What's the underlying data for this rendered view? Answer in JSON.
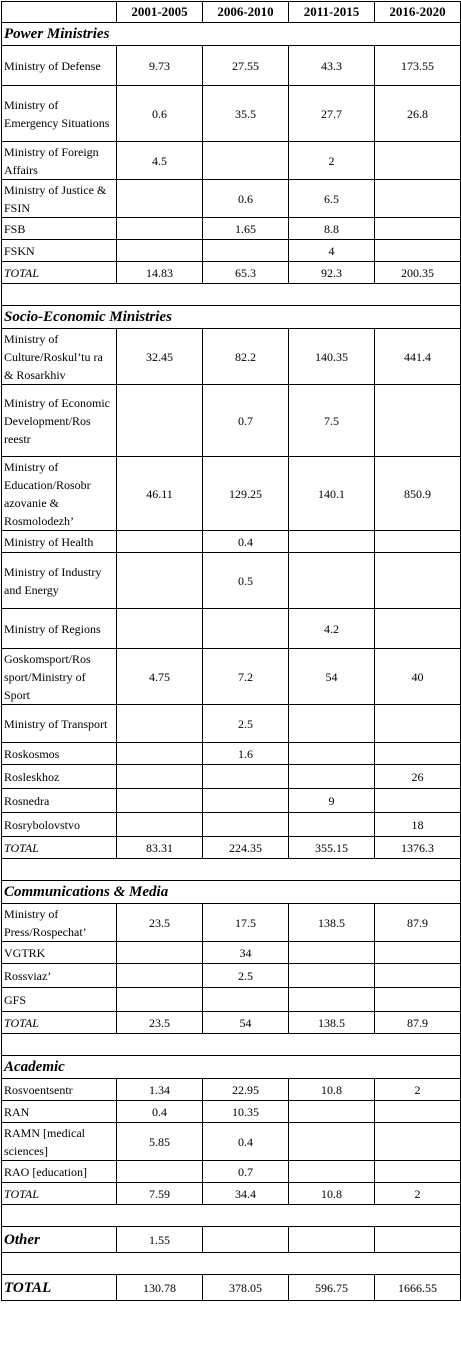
{
  "header": [
    "",
    "2001-2005",
    "2006-2010",
    "2011-2015",
    "2016-2020"
  ],
  "rows": [
    {
      "kind": "section",
      "title": "Power Ministries"
    },
    {
      "kind": "row",
      "h": 40,
      "label": "Ministry of Defense",
      "v": [
        "9.73",
        "27.55",
        "43.3",
        "173.55"
      ]
    },
    {
      "kind": "row",
      "h": 56,
      "label": "Ministry of Emergency Situations",
      "v": [
        "0.6",
        "35.5",
        "27.7",
        "26.8"
      ]
    },
    {
      "kind": "row",
      "h": 38,
      "label": "Ministry of Foreign Affairs",
      "v": [
        "4.5",
        "",
        "2",
        ""
      ]
    },
    {
      "kind": "row",
      "h": 38,
      "label": "Ministry of Justice & FSIN",
      "v": [
        "",
        "0.6",
        "6.5",
        ""
      ]
    },
    {
      "kind": "row",
      "h": 22,
      "label": "FSB",
      "v": [
        "",
        "1.65",
        "8.8",
        ""
      ]
    },
    {
      "kind": "row",
      "h": 22,
      "label": "FSKN",
      "v": [
        "",
        "",
        "4",
        ""
      ]
    },
    {
      "kind": "sum",
      "h": 22,
      "label": "TOTAL",
      "v": [
        "14.83",
        "65.3",
        "92.3",
        "200.35"
      ]
    },
    {
      "kind": "blank"
    },
    {
      "kind": "section",
      "title": "Socio-Economic Ministries"
    },
    {
      "kind": "row",
      "h": 56,
      "label": "Ministry of Culture/Roskul’tu ra & Rosarkhiv",
      "v": [
        "32.45",
        "82.2",
        "140.35",
        "441.4"
      ]
    },
    {
      "kind": "row",
      "h": 72,
      "label": "Ministry of Economic Development/Ros reestr",
      "v": [
        "",
        "0.7",
        "7.5",
        ""
      ]
    },
    {
      "kind": "row",
      "h": 74,
      "label": "Ministry of Education/Rosobr azovanie & Rosmolodezh’",
      "v": [
        "46.11",
        "129.25",
        "140.1",
        "850.9"
      ]
    },
    {
      "kind": "row",
      "h": 22,
      "label": "Ministry of Health",
      "v": [
        "",
        "0.4",
        "",
        ""
      ]
    },
    {
      "kind": "row",
      "h": 56,
      "label": "Ministry of Industry and Energy",
      "v": [
        "",
        "0.5",
        "",
        ""
      ]
    },
    {
      "kind": "row",
      "h": 40,
      "label": "Ministry of Regions",
      "v": [
        "",
        "",
        "4.2",
        ""
      ]
    },
    {
      "kind": "row",
      "h": 56,
      "label": "Goskomsport/Ros sport/Ministry of Sport",
      "v": [
        "4.75",
        "7.2",
        "54",
        "40"
      ]
    },
    {
      "kind": "row",
      "h": 38,
      "label": "Ministry of Transport",
      "v": [
        "",
        "2.5",
        "",
        ""
      ]
    },
    {
      "kind": "row",
      "h": 22,
      "label": "Roskosmos",
      "v": [
        "",
        "1.6",
        "",
        ""
      ]
    },
    {
      "kind": "row",
      "h": 24,
      "label": "Rosleskhoz",
      "v": [
        "",
        "",
        "",
        "26"
      ]
    },
    {
      "kind": "row",
      "h": 24,
      "label": "Rosnedra",
      "v": [
        "",
        "",
        "9",
        ""
      ]
    },
    {
      "kind": "row",
      "h": 24,
      "label": "Rosrybolovstvo",
      "v": [
        "",
        "",
        "",
        "18"
      ]
    },
    {
      "kind": "sum",
      "h": 22,
      "label": "TOTAL",
      "v": [
        "83.31",
        "224.35",
        "355.15",
        "1376.3"
      ]
    },
    {
      "kind": "blank"
    },
    {
      "kind": "section",
      "title": "Communications & Media"
    },
    {
      "kind": "row",
      "h": 38,
      "label": "Ministry of Press/Rospechat’",
      "v": [
        "23.5",
        "17.5",
        "138.5",
        "87.9"
      ]
    },
    {
      "kind": "row",
      "h": 22,
      "label": "VGTRK",
      "v": [
        "",
        "34",
        "",
        ""
      ]
    },
    {
      "kind": "row",
      "h": 24,
      "label": "Rossviaz’",
      "v": [
        "",
        "2.5",
        "",
        ""
      ]
    },
    {
      "kind": "row",
      "h": 24,
      "label": "GFS",
      "v": [
        "",
        "",
        "",
        ""
      ]
    },
    {
      "kind": "sum",
      "h": 22,
      "label": "TOTAL",
      "v": [
        "23.5",
        "54",
        "138.5",
        "87.9"
      ]
    },
    {
      "kind": "blank"
    },
    {
      "kind": "section",
      "title": "Academic"
    },
    {
      "kind": "row",
      "h": 22,
      "label": "Rosvoentsentr",
      "v": [
        "1.34",
        "22.95",
        "10.8",
        "2"
      ]
    },
    {
      "kind": "row",
      "h": 22,
      "label": "RAN",
      "v": [
        "0.4",
        "10.35",
        "",
        ""
      ]
    },
    {
      "kind": "row",
      "h": 38,
      "label": "RAMN [medical sciences]",
      "v": [
        "5.85",
        "0.4",
        "",
        ""
      ]
    },
    {
      "kind": "row",
      "h": 22,
      "label": "RAO [education]",
      "v": [
        "",
        "0.7",
        "",
        ""
      ]
    },
    {
      "kind": "sum",
      "h": 22,
      "label": "TOTAL",
      "v": [
        "7.59",
        "34.4",
        "10.8",
        "2"
      ]
    },
    {
      "kind": "blank"
    },
    {
      "kind": "other",
      "h": 26,
      "label": "Other",
      "v": [
        "1.55",
        "",
        "",
        ""
      ]
    },
    {
      "kind": "blank"
    },
    {
      "kind": "grand",
      "h": 26,
      "label": "TOTAL",
      "v": [
        "130.78",
        "378.05",
        "596.75",
        "1666.55"
      ]
    }
  ]
}
